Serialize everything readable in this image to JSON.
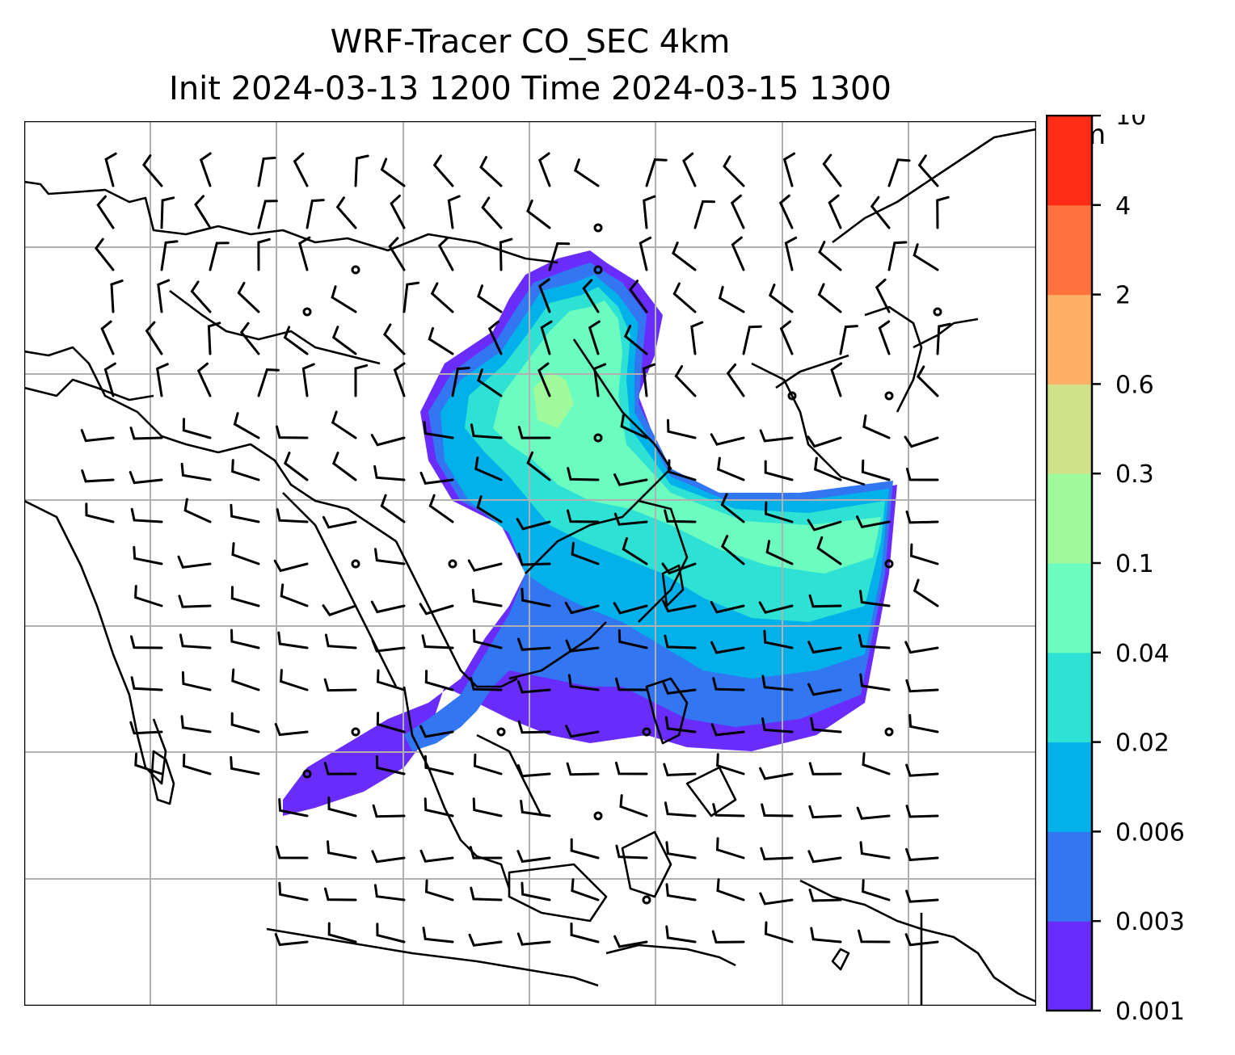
{
  "figure": {
    "title_line1": "WRF-Tracer CO_SEC 4km",
    "title_line2": "Init 2024-03-13 1200 Time 2024-03-15 1300"
  },
  "colorbar": {
    "unit": "ppm",
    "levels": [
      "0.001",
      "0.003",
      "0.006",
      "0.02",
      "0.04",
      "0.1",
      "0.3",
      "0.6",
      "2",
      "4",
      "10"
    ],
    "colors": [
      "#6a2cfb",
      "#3276f2",
      "#03b1ea",
      "#2de1d5",
      "#6bfcc0",
      "#9efa9a",
      "#d1e189",
      "#ffb064",
      "#ff723f",
      "#ff2d17"
    ]
  },
  "map": {
    "gridline_color": "#b0b0b0",
    "coastline_color": "#000000",
    "barb_color": "#000000",
    "plume_band_colors": [
      "#6a2cfb",
      "#3276f2",
      "#03b1ea",
      "#2de1d5",
      "#6bfcc0",
      "#9efa9a"
    ]
  }
}
